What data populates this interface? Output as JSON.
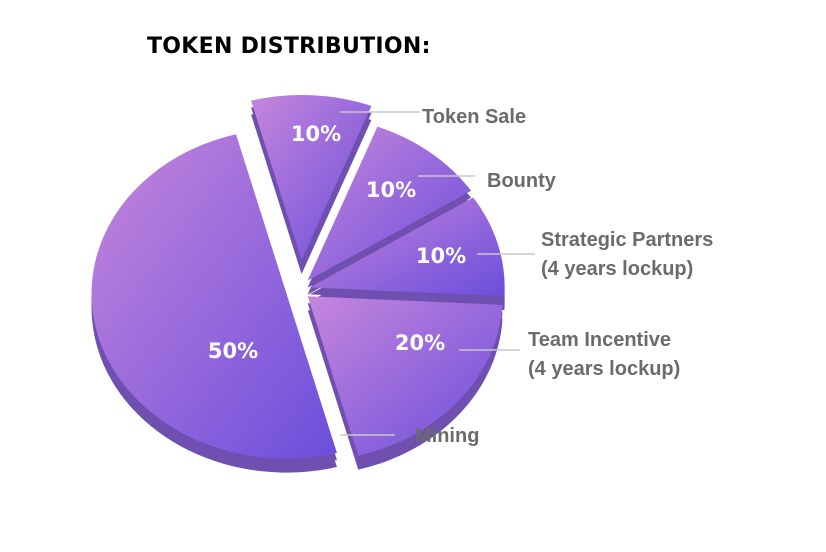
{
  "chart_data": {
    "type": "pie",
    "title": "TOKEN DISTRIBUTION:",
    "style": "3d-exploded",
    "slices": [
      {
        "label": "Token Sale",
        "label_line2": "",
        "value": 10,
        "pct_label": "10%"
      },
      {
        "label": "Bounty",
        "label_line2": "",
        "value": 10,
        "pct_label": "10%"
      },
      {
        "label": "Strategic Partners",
        "label_line2": "(4 years lockup)",
        "value": 10,
        "pct_label": "10%"
      },
      {
        "label": "Team Incentive",
        "label_line2": "(4 years lockup)",
        "value": 20,
        "pct_label": "20%"
      },
      {
        "label": "Mining",
        "label_line2": "",
        "value": 50,
        "pct_label": "50%"
      }
    ],
    "colors": {
      "gradient_start": "#c686dc",
      "gradient_end": "#6b4edc",
      "side": "#6f4fb0",
      "label_text": "#6b6b6b",
      "leader_line": "#c8c8c8"
    }
  }
}
